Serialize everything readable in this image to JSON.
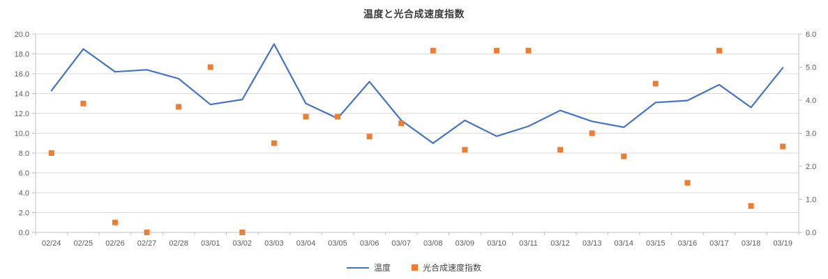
{
  "chart_data": {
    "type": "line",
    "title": "温度と光合成速度指数",
    "categories": [
      "02/24",
      "02/25",
      "02/26",
      "02/27",
      "02/28",
      "03/01",
      "03/02",
      "03/03",
      "03/04",
      "03/05",
      "03/06",
      "03/07",
      "03/08",
      "03/09",
      "03/10",
      "03/11",
      "03/12",
      "03/13",
      "03/14",
      "03/15",
      "03/16",
      "03/17",
      "03/18",
      "03/19"
    ],
    "series": [
      {
        "name": "温度",
        "type": "line",
        "axis": "left",
        "color": "#4472C4",
        "values": [
          14.3,
          18.5,
          16.2,
          16.4,
          15.5,
          12.9,
          13.4,
          19.0,
          13.0,
          11.5,
          15.2,
          11.3,
          9.0,
          11.3,
          9.7,
          10.7,
          12.3,
          11.2,
          10.6,
          13.1,
          13.3,
          14.9,
          12.6,
          16.6
        ]
      },
      {
        "name": "光合成速度指数",
        "type": "scatter",
        "marker": "square",
        "axis": "right",
        "color": "#ED7D31",
        "values": [
          2.4,
          3.9,
          0.3,
          0.0,
          3.8,
          5.0,
          0.0,
          2.7,
          3.5,
          3.5,
          2.9,
          3.3,
          5.5,
          2.5,
          5.5,
          5.5,
          2.5,
          3.0,
          2.3,
          4.5,
          1.5,
          5.5,
          0.8,
          2.6
        ]
      }
    ],
    "left_axis": {
      "min": 0,
      "max": 20,
      "step": 2,
      "decimals": 1
    },
    "right_axis": {
      "min": 0,
      "max": 6,
      "step": 1,
      "decimals": 1
    },
    "grid": true,
    "legend_position": "bottom",
    "colors": {
      "gridline": "#D9D9D9",
      "axis_line": "#BFBFBF",
      "tick_text": "#595959"
    }
  }
}
